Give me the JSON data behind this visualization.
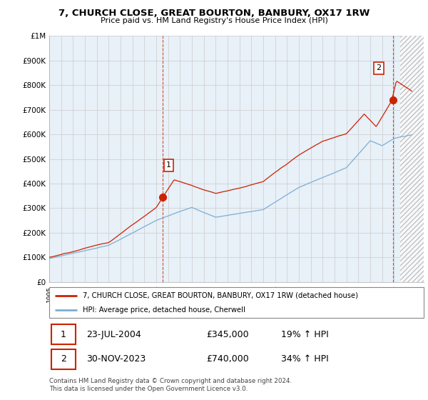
{
  "title": "7, CHURCH CLOSE, GREAT BOURTON, BANBURY, OX17 1RW",
  "subtitle": "Price paid vs. HM Land Registry's House Price Index (HPI)",
  "yticks": [
    0,
    100000,
    200000,
    300000,
    400000,
    500000,
    600000,
    700000,
    800000,
    900000,
    1000000
  ],
  "ytick_labels": [
    "£0",
    "£100K",
    "£200K",
    "£300K",
    "£400K",
    "£500K",
    "£600K",
    "£700K",
    "£800K",
    "£900K",
    "£1M"
  ],
  "xlim_start": 1995,
  "xlim_end": 2026.5,
  "ylim_min": 0,
  "ylim_max": 1000000,
  "hpi_color": "#7bafd4",
  "price_color": "#cc2200",
  "marker1_x": 2004.55,
  "marker1_y": 345000,
  "marker1_label": "1",
  "marker2_x": 2023.92,
  "marker2_y": 740000,
  "marker2_label": "2",
  "vline1_x": 2004.55,
  "vline2_x": 2023.92,
  "hatch_start": 2024.5,
  "legend_line1": "7, CHURCH CLOSE, GREAT BOURTON, BANBURY, OX17 1RW (detached house)",
  "legend_line2": "HPI: Average price, detached house, Cherwell",
  "table_row1_num": "1",
  "table_row1_date": "23-JUL-2004",
  "table_row1_price": "£345,000",
  "table_row1_hpi": "19% ↑ HPI",
  "table_row2_num": "2",
  "table_row2_date": "30-NOV-2023",
  "table_row2_price": "£740,000",
  "table_row2_hpi": "34% ↑ HPI",
  "footnote": "Contains HM Land Registry data © Crown copyright and database right 2024.\nThis data is licensed under the Open Government Licence v3.0.",
  "background_color": "#ffffff",
  "grid_color": "#cccccc",
  "chart_bg_color": "#e8f0f8"
}
